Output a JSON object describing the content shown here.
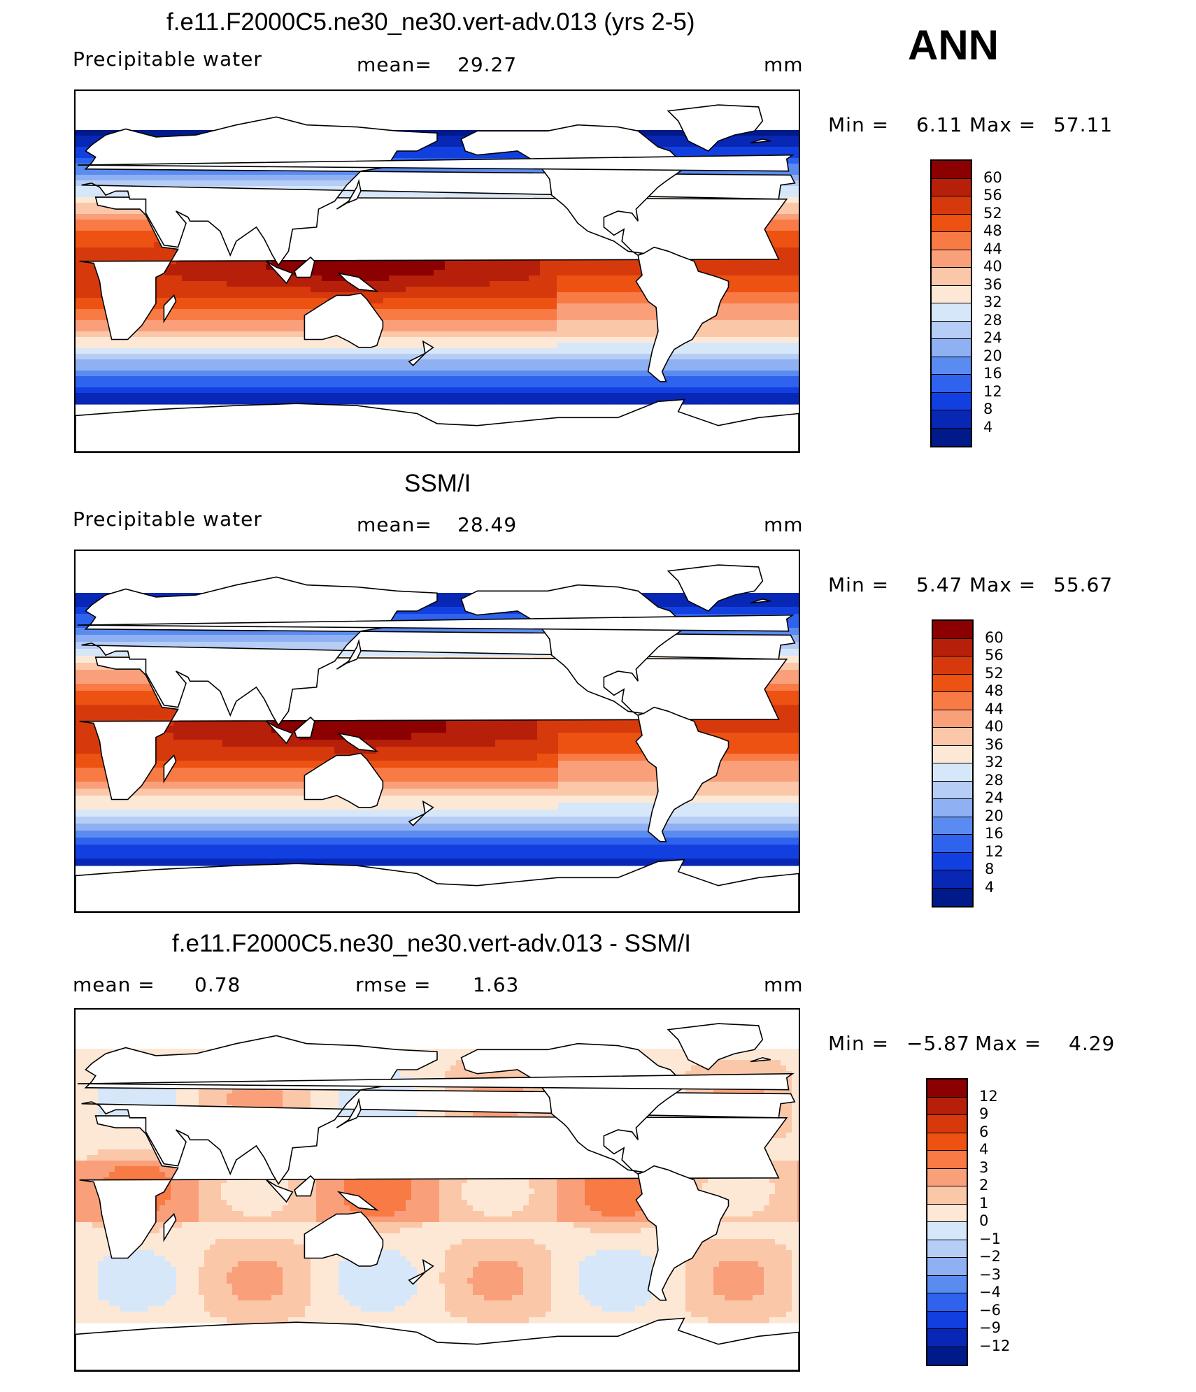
{
  "annotation": "ANN",
  "panels": [
    {
      "title": "f.e11.F2000C5.ne30_ne30.vert-adv.013 (yrs 2-5)",
      "variable": "Precipitable water",
      "stat_label": "mean=",
      "stat_value": "29.27",
      "stat2_label": "",
      "stat2_value": "",
      "units": "mm",
      "min_label": "Min =",
      "min_value": "6.11",
      "max_label": "Max =",
      "max_value": "57.11",
      "kind": "model",
      "levels": [
        "60",
        "56",
        "52",
        "48",
        "44",
        "40",
        "36",
        "32",
        "28",
        "24",
        "20",
        "16",
        "12",
        "8",
        "4"
      ]
    },
    {
      "title": "SSM/I",
      "variable": "Precipitable water",
      "stat_label": "mean=",
      "stat_value": "28.49",
      "stat2_label": "",
      "stat2_value": "",
      "units": "mm",
      "min_label": "Min =",
      "min_value": "5.47",
      "max_label": "Max =",
      "max_value": "55.67",
      "kind": "obs",
      "levels": [
        "60",
        "56",
        "52",
        "48",
        "44",
        "40",
        "36",
        "32",
        "28",
        "24",
        "20",
        "16",
        "12",
        "8",
        "4"
      ]
    },
    {
      "title": "f.e11.F2000C5.ne30_ne30.vert-adv.013 - SSM/I",
      "variable": "",
      "stat_label": "mean =",
      "stat_value": "0.78",
      "stat2_label": "rmse =",
      "stat2_value": "1.63",
      "units": "mm",
      "min_label": "Min =",
      "min_value": "−5.87",
      "max_label": "Max =",
      "max_value": "4.29",
      "kind": "diff",
      "levels": [
        "12",
        "9",
        "6",
        "4",
        "3",
        "2",
        "1",
        "0",
        "−1",
        "−2",
        "−3",
        "−4",
        "−6",
        "−9",
        "−12"
      ]
    }
  ],
  "colormap": [
    "#8b0000",
    "#b61f0a",
    "#d63a0c",
    "#ee5212",
    "#f87a45",
    "#f9a07a",
    "#fbc7a9",
    "#fde8d6",
    "#d7e7fa",
    "#b6cdf6",
    "#8fb0f2",
    "#5a8bf0",
    "#2f63ee",
    "#1240e0",
    "#0827b5",
    "#001a8a"
  ],
  "map_colors": {
    "land": "#ffffff",
    "coast": "#000000",
    "missing": "#ffffff"
  }
}
